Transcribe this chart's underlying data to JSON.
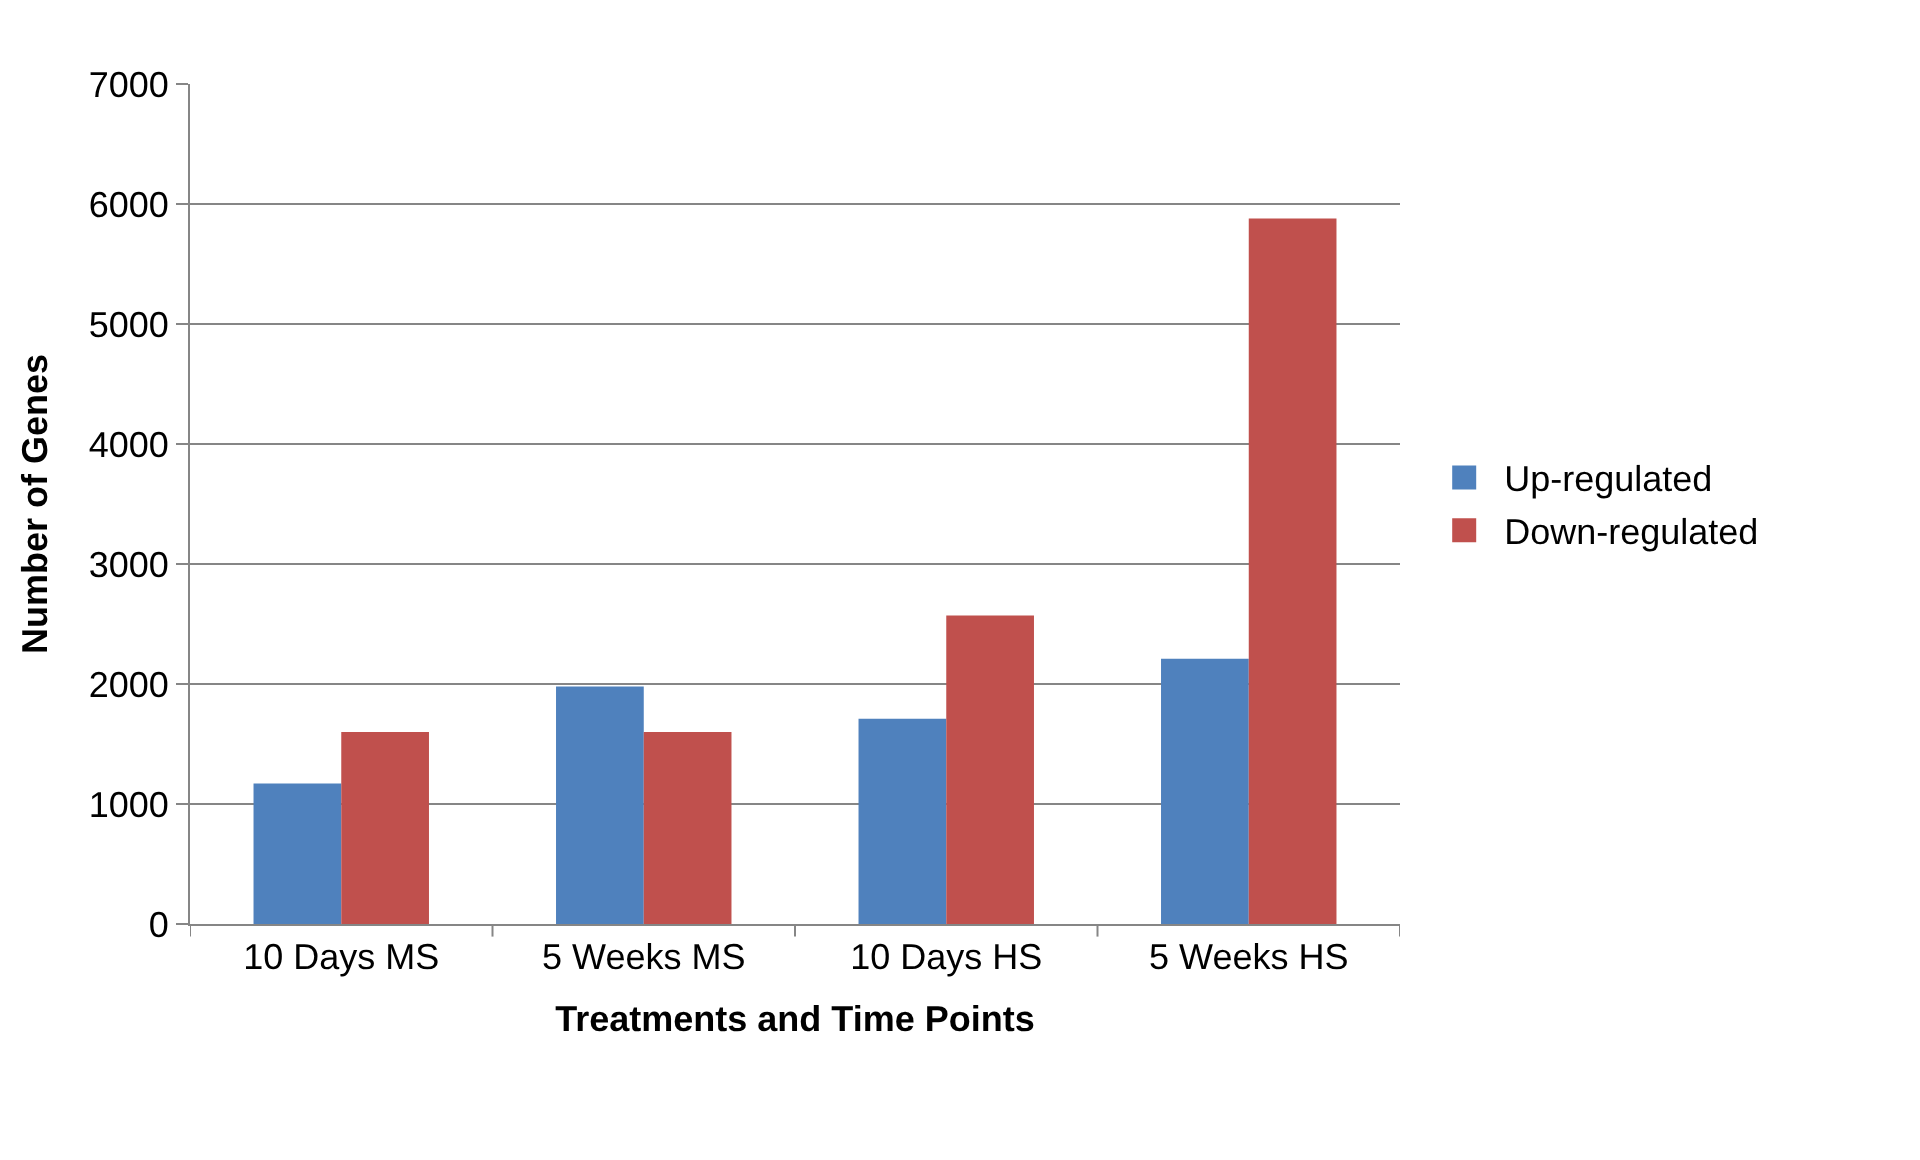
{
  "chart_data": {
    "type": "bar",
    "xlabel": "Treatments and Time Points",
    "ylabel": "Number of Genes",
    "categories": [
      "10 Days MS",
      "5 Weeks MS",
      "10 Days HS",
      "5 Weeks HS"
    ],
    "series": [
      {
        "name": "Up-regulated",
        "color": "#4f81bd",
        "values": [
          1170,
          1980,
          1710,
          2210
        ]
      },
      {
        "name": "Down-regulated",
        "color": "#c0504d",
        "values": [
          1600,
          1600,
          2570,
          5880
        ]
      }
    ],
    "ylim": [
      0,
      7000
    ],
    "yticks": [
      0,
      1000,
      2000,
      3000,
      4000,
      5000,
      6000,
      7000
    ],
    "grid": "y",
    "legend": "right"
  }
}
